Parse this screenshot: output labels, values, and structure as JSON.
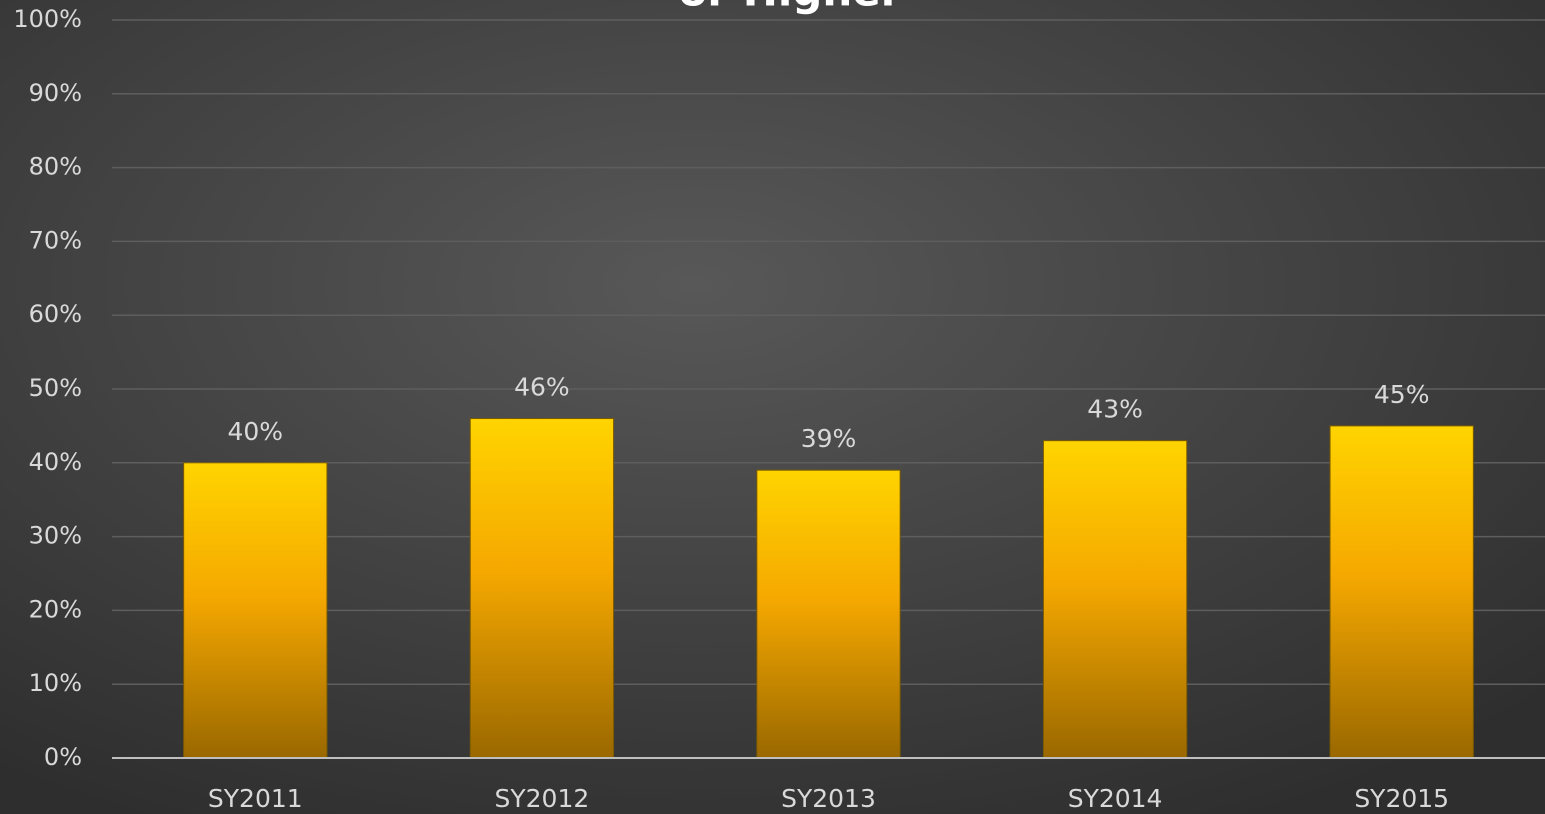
{
  "chart_data": {
    "type": "bar",
    "title": "or Higher",
    "categories": [
      "SY2011",
      "SY2012",
      "SY2013",
      "SY2014",
      "SY2015"
    ],
    "values": [
      40,
      46,
      39,
      43,
      45
    ],
    "value_labels": [
      "40%",
      "46%",
      "39%",
      "43%",
      "45%"
    ],
    "color": "#ffc000",
    "ylim": [
      0,
      100
    ],
    "yticks": [
      {
        "value": 0,
        "label": "0%"
      },
      {
        "value": 10,
        "label": "10%"
      },
      {
        "value": 20,
        "label": "20%"
      },
      {
        "value": 30,
        "label": "30%"
      },
      {
        "value": 40,
        "label": "40%"
      },
      {
        "value": 50,
        "label": "50%"
      },
      {
        "value": 60,
        "label": "60%"
      },
      {
        "value": 70,
        "label": "70%"
      },
      {
        "value": 80,
        "label": "80%"
      },
      {
        "value": 90,
        "label": "90%"
      },
      {
        "value": 100,
        "label": "100%"
      }
    ],
    "grid": true
  }
}
